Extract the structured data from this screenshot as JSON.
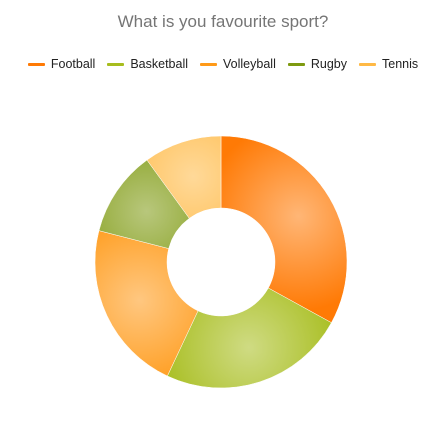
{
  "chart_data": {
    "type": "pie",
    "variant": "donut",
    "title": "What is you favourite sport?",
    "legend_position": "top",
    "categories": [
      "Football",
      "Basketball",
      "Volleyball",
      "Rugby",
      "Tennis"
    ],
    "values": [
      33,
      24,
      22,
      11,
      10
    ],
    "colors": [
      "#FF7A05",
      "#A7BD1E",
      "#FF9A18",
      "#7E9A10",
      "#FFB945"
    ]
  }
}
